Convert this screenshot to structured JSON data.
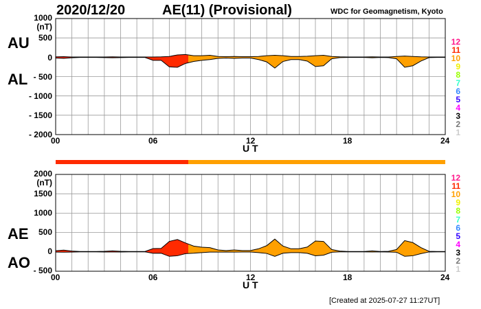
{
  "header": {
    "date": "2020/12/20",
    "index_title": "AE(11) (Provisional)",
    "source": "WDC for Geomagnetism, Kyoto"
  },
  "footer": {
    "created": "[Created at 2025-07-27 11:27UT]"
  },
  "colors": {
    "stations_11": "#ff2a00",
    "stations_10": "#ffa000",
    "grid": "#999999",
    "outline": "#000000"
  },
  "legend": [
    {
      "label": "12",
      "color": "#ff1a8c"
    },
    {
      "label": "11",
      "color": "#ff2a00"
    },
    {
      "label": "10",
      "color": "#ffa000"
    },
    {
      "label": "9",
      "color": "#f0f000"
    },
    {
      "label": "8",
      "color": "#99ff00"
    },
    {
      "label": "7",
      "color": "#33ffcc"
    },
    {
      "label": "6",
      "color": "#3388ff"
    },
    {
      "label": "5",
      "color": "#3300ff"
    },
    {
      "label": "4",
      "color": "#ff00ff"
    },
    {
      "label": "3",
      "color": "#000000"
    },
    {
      "label": "2",
      "color": "#777777"
    },
    {
      "label": "1",
      "color": "#cccccc"
    }
  ],
  "chart_data": [
    {
      "type": "area",
      "title": "AU / AL",
      "labels": {
        "upper": "AU",
        "lower": "AL"
      },
      "xlabel": "U T",
      "ylabel": "(nT)",
      "xlim": [
        0,
        24
      ],
      "ylim": [
        -2000,
        1000
      ],
      "xticks": [
        "00",
        "06",
        "12",
        "18",
        "24"
      ],
      "yticks": [
        "1000",
        "500",
        "0",
        "- 500",
        "- 1000",
        "- 1500",
        "- 2000"
      ],
      "x": [
        0,
        0.5,
        1,
        1.5,
        2,
        2.5,
        3,
        3.5,
        4,
        4.5,
        5,
        5.5,
        6,
        6.5,
        7,
        7.5,
        8,
        8.5,
        9,
        9.5,
        10,
        10.5,
        11,
        11.5,
        12,
        12.5,
        13,
        13.5,
        14,
        14.5,
        15,
        15.5,
        16,
        16.5,
        17,
        17.5,
        18,
        18.5,
        19,
        19.5,
        20,
        20.5,
        21,
        21.5,
        22,
        22.5,
        23,
        23.5,
        24
      ],
      "series": [
        {
          "name": "AU",
          "values": [
            10,
            15,
            5,
            5,
            5,
            5,
            5,
            10,
            5,
            5,
            5,
            5,
            5,
            10,
            20,
            60,
            70,
            40,
            40,
            50,
            20,
            15,
            20,
            15,
            15,
            20,
            40,
            50,
            40,
            20,
            20,
            25,
            40,
            50,
            20,
            10,
            5,
            5,
            5,
            10,
            5,
            5,
            20,
            30,
            20,
            10,
            5,
            5,
            5
          ]
        },
        {
          "name": "AL",
          "values": [
            -20,
            -30,
            -15,
            -5,
            -5,
            -5,
            -10,
            -15,
            -10,
            -5,
            -5,
            -5,
            -80,
            -80,
            -250,
            -260,
            -160,
            -110,
            -80,
            -60,
            -30,
            -20,
            -30,
            -20,
            -20,
            -60,
            -120,
            -280,
            -110,
            -60,
            -60,
            -100,
            -240,
            -220,
            -40,
            -10,
            -5,
            -5,
            -5,
            -15,
            -5,
            -10,
            -40,
            -260,
            -220,
            -100,
            -10,
            -5,
            -5
          ]
        }
      ],
      "grid": true
    },
    {
      "type": "area",
      "title": "AE / AO",
      "labels": {
        "upper": "AE",
        "lower": "AO"
      },
      "xlabel": "U T",
      "ylabel": "(nT)",
      "xlim": [
        0,
        24
      ],
      "ylim": [
        -500,
        2000
      ],
      "xticks": [
        "00",
        "06",
        "12",
        "18",
        "24"
      ],
      "yticks": [
        "2000",
        "1500",
        "1000",
        "500",
        "0",
        "- 500"
      ],
      "x": [
        0,
        0.5,
        1,
        1.5,
        2,
        2.5,
        3,
        3.5,
        4,
        4.5,
        5,
        5.5,
        6,
        6.5,
        7,
        7.5,
        8,
        8.5,
        9,
        9.5,
        10,
        10.5,
        11,
        11.5,
        12,
        12.5,
        13,
        13.5,
        14,
        14.5,
        15,
        15.5,
        16,
        16.5,
        17,
        17.5,
        18,
        18.5,
        19,
        19.5,
        20,
        20.5,
        21,
        21.5,
        22,
        22.5,
        23,
        23.5,
        24
      ],
      "series": [
        {
          "name": "AE",
          "values": [
            30,
            45,
            20,
            10,
            10,
            10,
            15,
            25,
            15,
            10,
            10,
            10,
            85,
            90,
            270,
            320,
            230,
            150,
            120,
            110,
            50,
            35,
            50,
            35,
            35,
            80,
            160,
            330,
            150,
            80,
            80,
            125,
            280,
            270,
            60,
            20,
            10,
            10,
            10,
            25,
            10,
            15,
            60,
            290,
            240,
            110,
            15,
            10,
            10
          ]
        },
        {
          "name": "AO",
          "values": [
            -5,
            -7.5,
            -5,
            0,
            0,
            0,
            -2.5,
            -2.5,
            -2.5,
            0,
            0,
            0,
            -37.5,
            -35,
            -115,
            -100,
            -45,
            -35,
            -20,
            -5,
            -5,
            -2.5,
            -5,
            -2.5,
            -2.5,
            -20,
            -40,
            -115,
            -35,
            -20,
            -20,
            -37.5,
            -100,
            -85,
            -10,
            0,
            0,
            0,
            0,
            -2.5,
            0,
            -2.5,
            -10,
            -115,
            -100,
            -45,
            -2.5,
            0,
            0
          ]
        }
      ],
      "grid": true
    }
  ],
  "station_count": {
    "segments": [
      {
        "from_hour": 0,
        "to_hour": 8.17,
        "count": 11
      },
      {
        "from_hour": 8.17,
        "to_hour": 24,
        "count": 10
      }
    ]
  }
}
